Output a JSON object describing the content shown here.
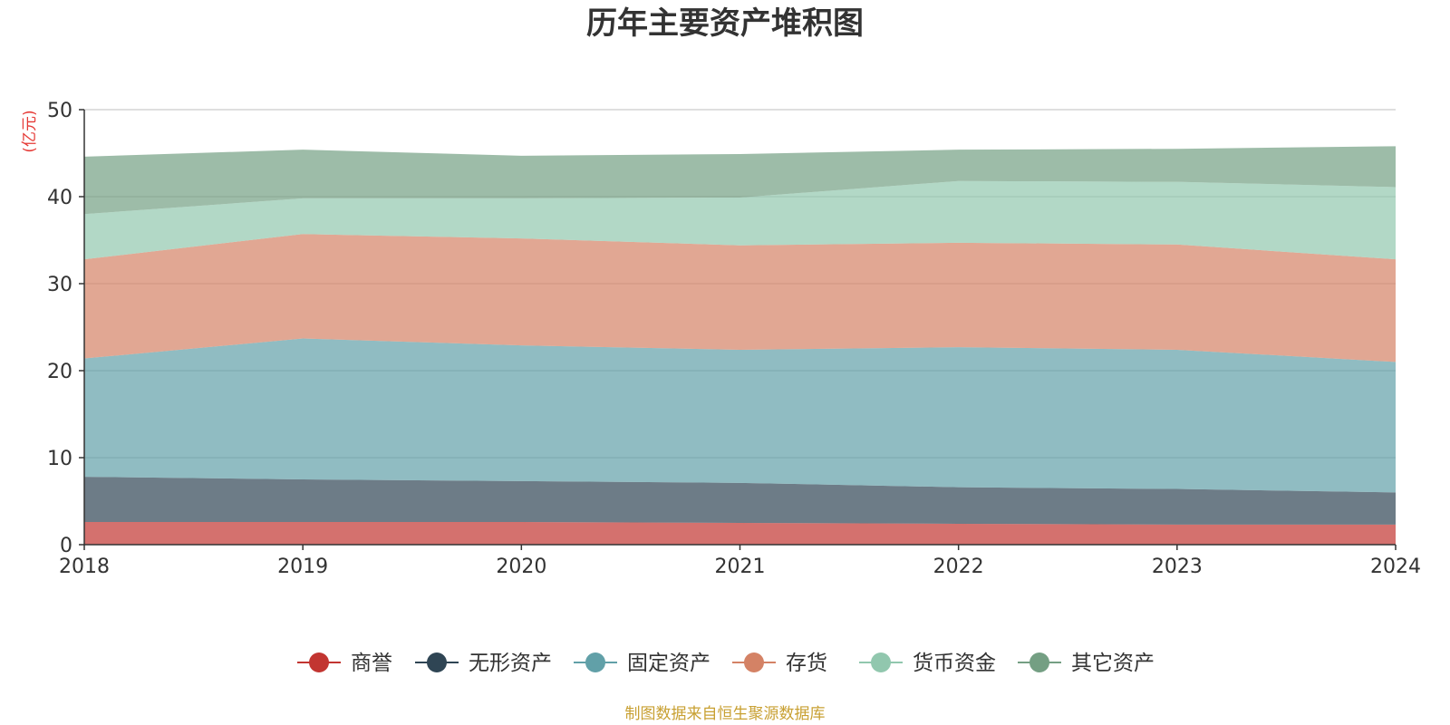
{
  "chart_data": {
    "type": "area",
    "stacked": true,
    "title": "历年主要资产堆积图",
    "unit_label": "(亿元)",
    "x": [
      "2018",
      "2019",
      "2020",
      "2021",
      "2022",
      "2023",
      "2024"
    ],
    "ylim": [
      0,
      50
    ],
    "yticks": [
      "0",
      "10",
      "20",
      "30",
      "40",
      "50"
    ],
    "grid": true,
    "legend_position": "bottom",
    "series": [
      {
        "name": "商誉",
        "color": "#c23531",
        "values": [
          2.6,
          2.6,
          2.6,
          2.5,
          2.4,
          2.3,
          2.3
        ]
      },
      {
        "name": "无形资产",
        "color": "#2f4554",
        "values": [
          5.2,
          4.9,
          4.7,
          4.6,
          4.2,
          4.1,
          3.7
        ]
      },
      {
        "name": "固定资产",
        "color": "#61a0a8",
        "values": [
          13.6,
          16.2,
          15.6,
          15.3,
          16.1,
          16.0,
          15.0
        ]
      },
      {
        "name": "存货",
        "color": "#d48265",
        "values": [
          11.4,
          12.0,
          12.3,
          12.0,
          12.0,
          12.1,
          11.8
        ]
      },
      {
        "name": "货币资金",
        "color": "#91c7ae",
        "values": [
          5.2,
          4.1,
          4.6,
          5.5,
          7.1,
          7.2,
          8.3
        ]
      },
      {
        "name": "其它资产",
        "color": "#749f83",
        "values": [
          6.6,
          5.6,
          4.9,
          5.0,
          3.6,
          3.8,
          4.7
        ]
      }
    ],
    "source": "制图数据来自恒生聚源数据库"
  }
}
